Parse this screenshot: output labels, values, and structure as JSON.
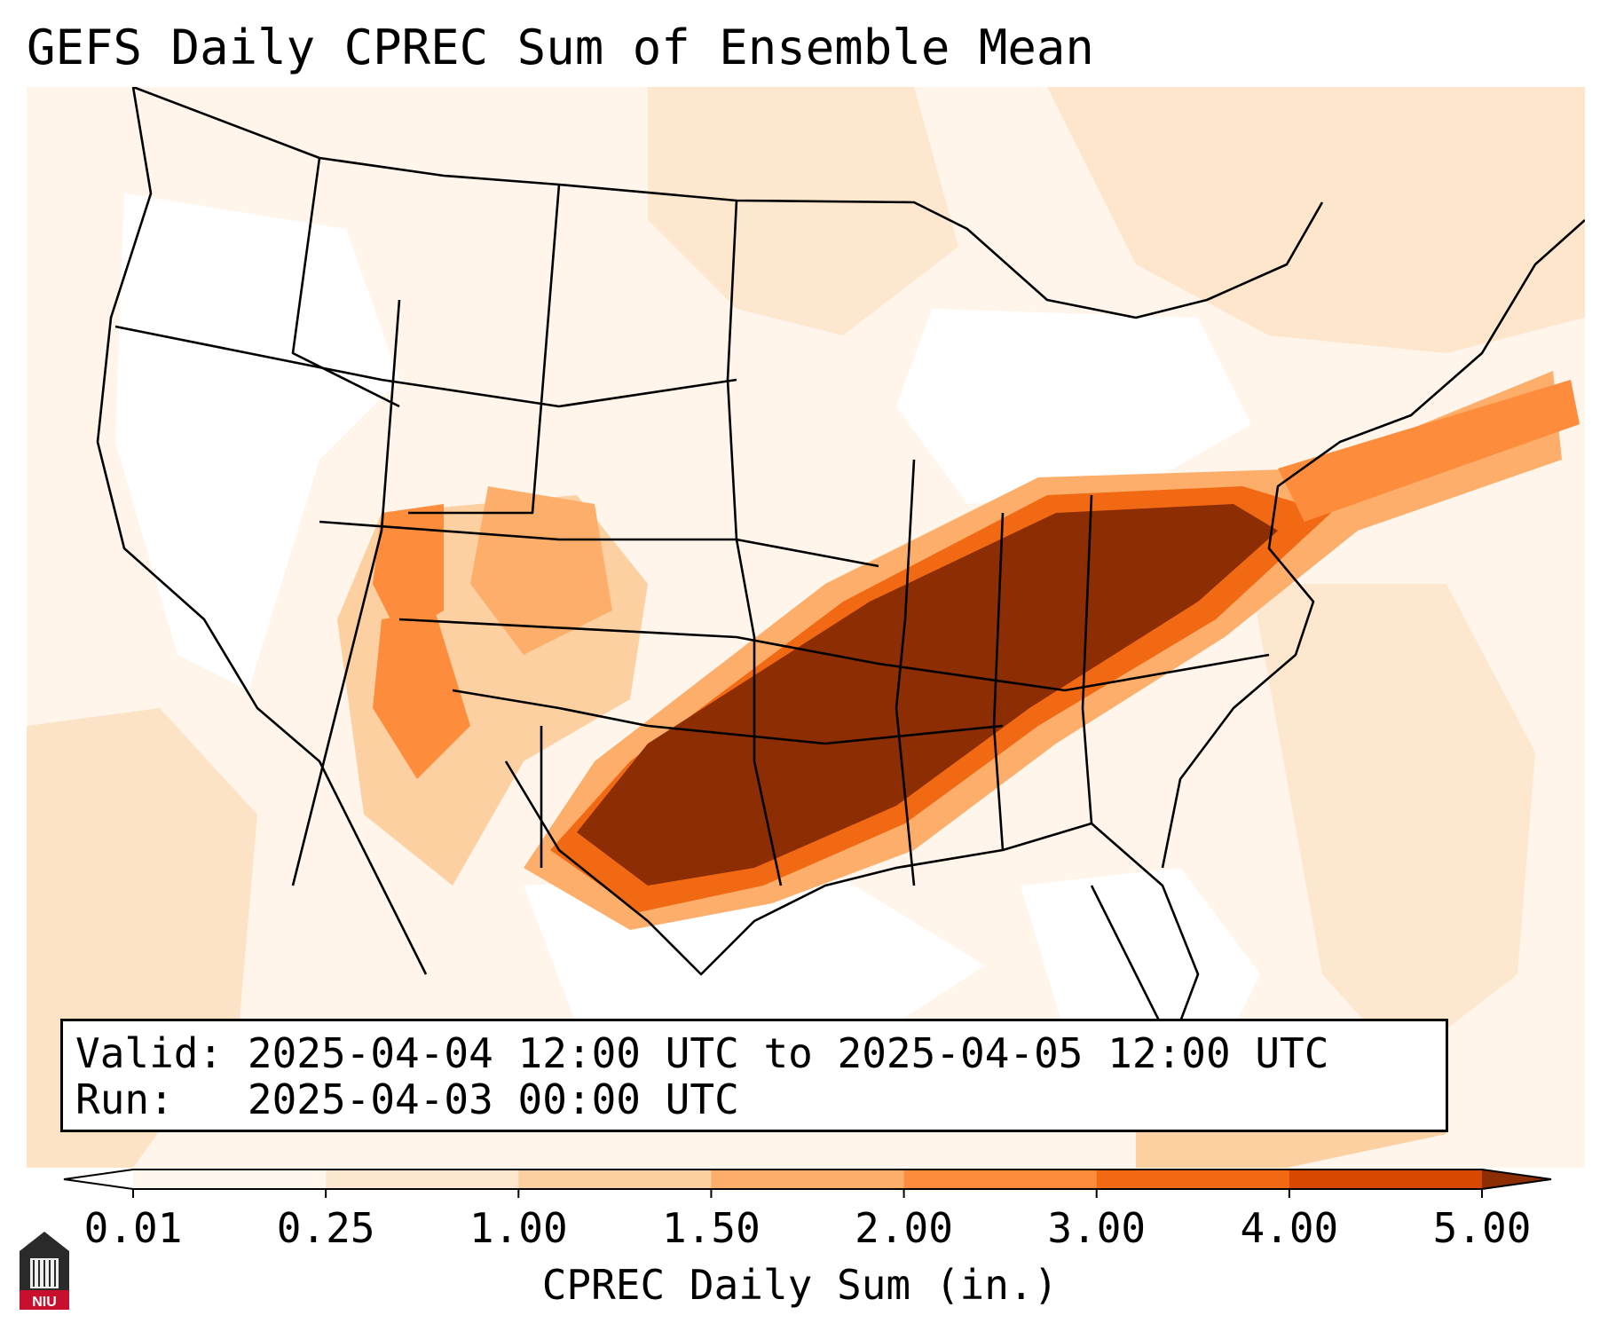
{
  "title": "GEFS Daily CPREC Sum of Ensemble Mean",
  "valid_box": {
    "valid_label": "Valid:",
    "valid_value": "2025-04-04 12:00 UTC to 2025-04-05 12:00 UTC",
    "run_label": "Run:",
    "run_value": "2025-04-03 00:00 UTC"
  },
  "colorbar": {
    "label": "CPREC Daily Sum (in.)",
    "ticks": [
      "0.01",
      "0.25",
      "1.00",
      "1.50",
      "2.00",
      "3.00",
      "4.00",
      "5.00"
    ],
    "colors": [
      "#fff6ed",
      "#fee7cf",
      "#fdd0a2",
      "#fdae6b",
      "#fd8d3c",
      "#f16913",
      "#d94801",
      "#8c2d04"
    ],
    "under_color": "#ffffff",
    "over_color": "#8c2d04"
  },
  "logo": {
    "text": "NIU"
  },
  "map": {
    "region": "Contiguous United States",
    "background_color": "#fff5eb"
  }
}
